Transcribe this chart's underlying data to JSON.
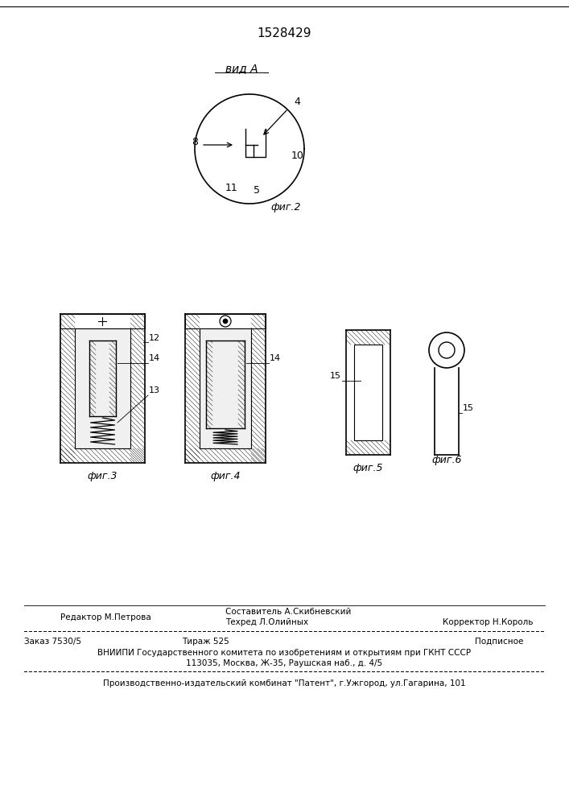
{
  "patent_number": "1528429",
  "view_label": "вид А",
  "fig2_label": "фиг.2",
  "fig3_label": "фиг.3",
  "fig4_label": "фиг.4",
  "fig5_label": "фиг.5",
  "fig6_label": "фиг.6",
  "editor_line": "Редактор М.Петрова",
  "composer_line1": "Составитель А.Скибневский",
  "techred_line": "Техред Л.Олийных",
  "corrector_line": "Корректор Н.Король",
  "order_line": "Заказ 7530/5",
  "tirage_line": "Тираж 525",
  "podpis_line": "Подписное",
  "vnipi_line": "ВНИИПИ Государственного комитета по изобретениям и открытиям при ГКНТ СССР",
  "address_line": "113035, Москва, Ж-35, Раушская наб., д. 4/5",
  "factory_line": "Производственно-издательский комбинат \"Патент\", г.Ужгород, ул.Гагарина, 101",
  "bg_color": "#ffffff",
  "line_color": "#000000"
}
